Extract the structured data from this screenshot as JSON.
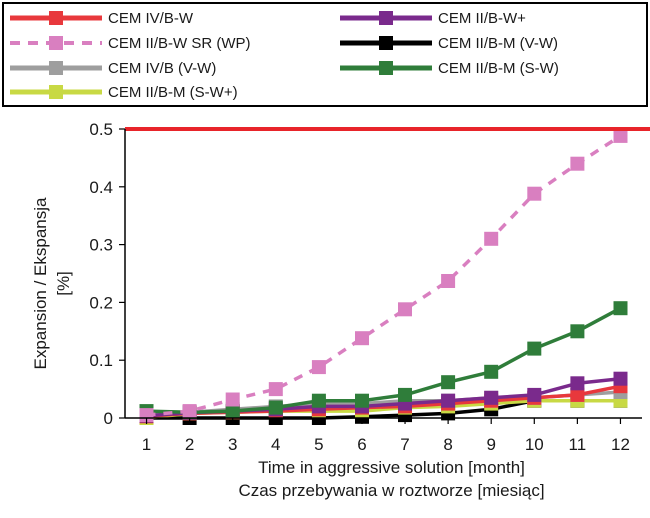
{
  "chart_data": {
    "type": "line",
    "xlabel": [
      "Time in aggressive solution [month]",
      "Czas przebywania w roztworze [miesiąc]"
    ],
    "ylabel": [
      "Expansion / Ekspansja",
      "[%]"
    ],
    "x": [
      1,
      2,
      3,
      4,
      5,
      6,
      7,
      8,
      9,
      10,
      11,
      12
    ],
    "xlim": [
      0.5,
      12.5
    ],
    "ylim": [
      0,
      0.5
    ],
    "yticks": [
      0,
      0.1,
      0.2,
      0.3,
      0.4,
      0.5
    ],
    "yticklabels": [
      "0",
      "0.1",
      "0.2",
      "0.3",
      "0.4",
      "0.5"
    ],
    "limit_line": {
      "y": 0.5,
      "color": "#e8242a"
    },
    "legend_position": "top",
    "series": [
      {
        "name": "CEM IV/B-W",
        "color": "#e8383c",
        "dashed": false,
        "values": [
          0.003,
          0.008,
          0.01,
          0.012,
          0.015,
          0.018,
          0.02,
          0.025,
          0.03,
          0.035,
          0.04,
          0.055
        ]
      },
      {
        "name": "CEM II/B-W+",
        "color": "#7a2a8c",
        "dashed": false,
        "values": [
          0.004,
          0.009,
          0.012,
          0.015,
          0.02,
          0.02,
          0.025,
          0.03,
          0.035,
          0.04,
          0.06,
          0.068
        ]
      },
      {
        "name": "CEM II/B-W SR (WP)",
        "color": "#d97fc0",
        "dashed": true,
        "values": [
          0.005,
          0.012,
          0.032,
          0.05,
          0.088,
          0.138,
          0.188,
          0.237,
          0.31,
          0.388,
          0.44,
          0.488
        ]
      },
      {
        "name": "CEM II/B-M (V-W)",
        "color": "#000000",
        "dashed": false,
        "values": [
          0.0,
          0.0,
          0.0,
          0.0,
          0.0,
          0.002,
          0.005,
          0.008,
          0.015,
          0.03,
          0.03,
          0.03
        ]
      },
      {
        "name": "CEM IV/B (V-W)",
        "color": "#9e9e9e",
        "dashed": false,
        "values": [
          0.008,
          0.01,
          0.015,
          0.02,
          0.025,
          0.025,
          0.03,
          0.03,
          0.035,
          0.035,
          0.04,
          0.045
        ]
      },
      {
        "name": "CEM II/B-M (S-W)",
        "color": "#2f7d3a",
        "dashed": false,
        "values": [
          0.012,
          0.01,
          0.012,
          0.018,
          0.03,
          0.03,
          0.04,
          0.062,
          0.08,
          0.12,
          0.15,
          0.19
        ]
      },
      {
        "name": "CEM II/B-M (S-W+)",
        "color": "#c8d944",
        "dashed": false,
        "values": [
          0.0,
          0.008,
          0.01,
          0.012,
          0.012,
          0.012,
          0.018,
          0.02,
          0.025,
          0.03,
          0.03,
          0.03
        ]
      }
    ]
  }
}
